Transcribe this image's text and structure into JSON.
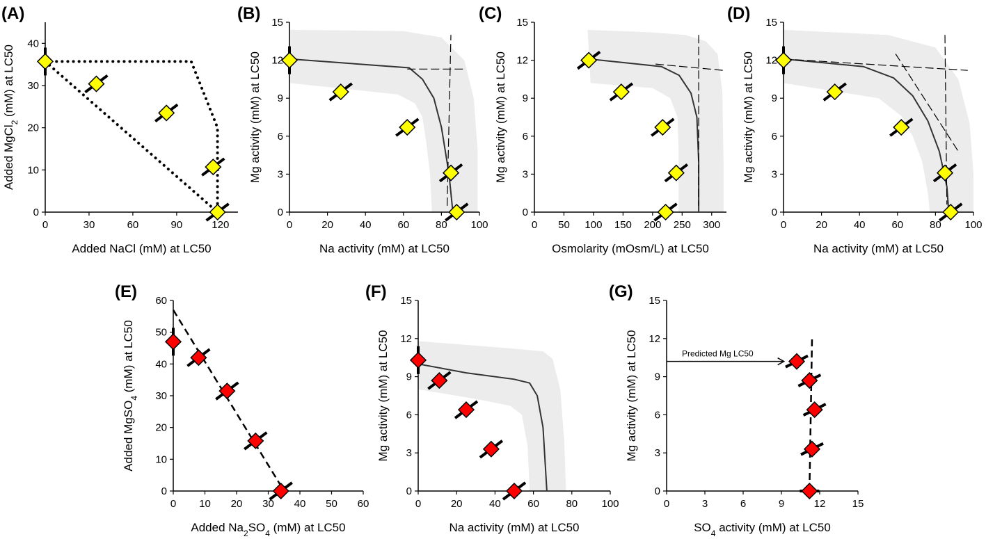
{
  "chart_data": [
    {
      "type": "scatter",
      "panel_label": "(A)",
      "xlabel": "Added NaCl (mM) at LC50",
      "ylabel_parts": [
        "Added MgCl",
        "2",
        " (mM) at LC50"
      ],
      "xlim": [
        0,
        132
      ],
      "ylim": [
        0,
        45
      ],
      "xticks": [
        0,
        30,
        60,
        90,
        120
      ],
      "yticks": [
        0,
        10,
        20,
        30,
        40
      ],
      "points": [
        [
          0,
          35.7
        ],
        [
          35,
          30.4
        ],
        [
          83,
          23.5
        ],
        [
          115,
          10.7
        ],
        [
          118,
          0
        ]
      ],
      "point_color": "#ffff00",
      "dotted_lines": [
        [
          [
            0,
            35.7
          ],
          [
            118,
            0
          ]
        ],
        [
          [
            0,
            35.7
          ],
          [
            100,
            35.7
          ],
          [
            118,
            20
          ],
          [
            118,
            0
          ]
        ]
      ],
      "dash_lines": [],
      "fit_lines": [],
      "band": null
    },
    {
      "type": "scatter",
      "panel_label": "(B)",
      "xlabel": "Na activity (mM) at LC50",
      "ylabel": "Mg activity (mM) at LC50",
      "xlim": [
        0,
        100
      ],
      "ylim": [
        0,
        15
      ],
      "xticks": [
        0,
        20,
        40,
        60,
        80,
        100
      ],
      "yticks": [
        0,
        3,
        6,
        9,
        12,
        15
      ],
      "points": [
        [
          0,
          12
        ],
        [
          27,
          9.5
        ],
        [
          62,
          6.7
        ],
        [
          85,
          3.1
        ],
        [
          88,
          0
        ]
      ],
      "point_color": "#ffff00",
      "fit_lines": [
        [
          [
            0,
            12.1
          ],
          [
            63,
            11.4
          ],
          [
            70,
            10.5
          ],
          [
            76,
            9.0
          ],
          [
            80,
            6.7
          ],
          [
            84,
            3.0
          ],
          [
            86,
            0
          ]
        ]
      ],
      "band": {
        "upper": [
          [
            0,
            14.4
          ],
          [
            60,
            14.3
          ],
          [
            80,
            13.8
          ],
          [
            92,
            12.0
          ],
          [
            97,
            9.0
          ],
          [
            99,
            5.0
          ],
          [
            99,
            0
          ]
        ],
        "lower": [
          [
            0,
            10.2
          ],
          [
            57,
            9.3
          ],
          [
            66,
            8.6
          ],
          [
            70,
            7.5
          ],
          [
            72,
            5.5
          ],
          [
            74,
            3.0
          ],
          [
            75,
            0
          ]
        ]
      },
      "dash_lines": [
        [
          [
            62,
            11.3
          ],
          [
            93,
            11.3
          ]
        ],
        [
          [
            83,
            0.5
          ],
          [
            85,
            14.0
          ]
        ]
      ]
    },
    {
      "type": "scatter",
      "panel_label": "(C)",
      "xlabel": "Osmolarity (mOsm/L) at LC50",
      "ylabel": "Mg activity (mM) at LC50",
      "xlim": [
        0,
        325
      ],
      "ylim": [
        0,
        15
      ],
      "xticks": [
        0,
        50,
        100,
        150,
        200,
        250,
        300
      ],
      "yticks": [
        0,
        3,
        6,
        9,
        12,
        15
      ],
      "points": [
        [
          92,
          12
        ],
        [
          147,
          9.5
        ],
        [
          217,
          6.7
        ],
        [
          240,
          3.1
        ],
        [
          222,
          0
        ]
      ],
      "point_color": "#ffff00",
      "fit_lines": [
        [
          [
            92,
            12.1
          ],
          [
            215,
            11.5
          ],
          [
            245,
            10.8
          ],
          [
            265,
            9.4
          ],
          [
            275,
            7.5
          ],
          [
            278,
            4
          ],
          [
            278,
            0
          ]
        ]
      ],
      "band": {
        "upper": [
          [
            90,
            14.4
          ],
          [
            200,
            14.2
          ],
          [
            255,
            14.0
          ],
          [
            290,
            13.5
          ],
          [
            310,
            12.5
          ],
          [
            318,
            9.5
          ],
          [
            320,
            4
          ],
          [
            320,
            0
          ]
        ],
        "lower": [
          [
            95,
            10.2
          ],
          [
            200,
            9.8
          ],
          [
            230,
            9.0
          ],
          [
            242,
            7.5
          ],
          [
            244,
            5
          ],
          [
            244,
            0
          ]
        ]
      },
      "dash_lines": [
        [
          [
            205,
            11.7
          ],
          [
            320,
            11.2
          ]
        ],
        [
          [
            278,
            14.0
          ],
          [
            278,
            0.5
          ]
        ]
      ]
    },
    {
      "type": "scatter",
      "panel_label": "(D)",
      "xlabel": "Na activity (mM) at LC50",
      "ylabel": "Mg activity (mM) at LC50",
      "xlim": [
        0,
        100
      ],
      "ylim": [
        0,
        15
      ],
      "xticks": [
        0,
        20,
        40,
        60,
        80,
        100
      ],
      "yticks": [
        0,
        3,
        6,
        9,
        12,
        15
      ],
      "points": [
        [
          0,
          12
        ],
        [
          27,
          9.5
        ],
        [
          62,
          6.7
        ],
        [
          85,
          3.1
        ],
        [
          88,
          0
        ]
      ],
      "point_color": "#ffff00",
      "fit_lines": [
        [
          [
            0,
            12.1
          ],
          [
            42,
            11.5
          ],
          [
            58,
            10.6
          ],
          [
            68,
            9.2
          ],
          [
            76,
            7.2
          ],
          [
            82,
            4.8
          ],
          [
            86,
            2.0
          ],
          [
            87,
            0
          ]
        ]
      ],
      "band": {
        "upper": [
          [
            0,
            14.4
          ],
          [
            55,
            14.0
          ],
          [
            80,
            13.0
          ],
          [
            92,
            10.5
          ],
          [
            98,
            7.0
          ],
          [
            100,
            3.0
          ],
          [
            100,
            0
          ]
        ],
        "lower": [
          [
            0,
            10.2
          ],
          [
            50,
            9.0
          ],
          [
            62,
            7.6
          ],
          [
            68,
            6.0
          ],
          [
            73,
            4.0
          ],
          [
            76,
            1.5
          ],
          [
            77,
            0
          ]
        ]
      },
      "dash_lines": [
        [
          [
            0,
            12.1
          ],
          [
            97,
            11.2
          ]
        ],
        [
          [
            59,
            12.5
          ],
          [
            92,
            4.8
          ]
        ],
        [
          [
            85,
            14.0
          ],
          [
            86,
            0.6
          ]
        ]
      ]
    },
    {
      "type": "scatter",
      "panel_label": "(E)",
      "xlabel_parts": [
        "Added Na",
        "2",
        "SO",
        "4",
        " (mM) at LC50"
      ],
      "ylabel_parts": [
        "Added MgSO",
        "4",
        " (mM) at LC50"
      ],
      "xlim": [
        0,
        60
      ],
      "ylim": [
        0,
        60
      ],
      "xticks": [
        0,
        10,
        20,
        30,
        40,
        50,
        60
      ],
      "yticks": [
        0,
        10,
        20,
        30,
        40,
        50,
        60
      ],
      "points": [
        [
          0,
          47
        ],
        [
          8,
          42
        ],
        [
          17,
          31.5
        ],
        [
          26,
          15.8
        ],
        [
          34,
          0
        ]
      ],
      "point_color": "#ff0000",
      "fit_lines": [],
      "band": null,
      "dash_lines": [
        [
          [
            0,
            57
          ],
          [
            35,
            0
          ]
        ]
      ]
    },
    {
      "type": "scatter",
      "panel_label": "(F)",
      "xlabel": "Na activity (mM) at LC50",
      "ylabel": "Mg activity (mM) at LC50",
      "xlim": [
        0,
        100
      ],
      "ylim": [
        0,
        15
      ],
      "xticks": [
        0,
        20,
        40,
        60,
        80,
        100
      ],
      "yticks": [
        0,
        3,
        6,
        9,
        12,
        15
      ],
      "points": [
        [
          0,
          10.3
        ],
        [
          11,
          8.7
        ],
        [
          25,
          6.4
        ],
        [
          38,
          3.3
        ],
        [
          50,
          0
        ]
      ],
      "point_color": "#ff0000",
      "fit_lines": [
        [
          [
            0,
            10.0
          ],
          [
            25,
            9.3
          ],
          [
            50,
            8.8
          ],
          [
            58,
            8.5
          ],
          [
            62,
            7.5
          ],
          [
            65,
            5
          ],
          [
            67,
            0
          ]
        ]
      ],
      "band": {
        "upper": [
          [
            0,
            11.8
          ],
          [
            50,
            11.2
          ],
          [
            65,
            11.0
          ],
          [
            70,
            10.4
          ],
          [
            74,
            8.0
          ],
          [
            76,
            4.0
          ],
          [
            77,
            0
          ]
        ],
        "lower": [
          [
            0,
            8.0
          ],
          [
            20,
            7.5
          ],
          [
            35,
            7.1
          ],
          [
            48,
            6.7
          ],
          [
            54,
            6.0
          ],
          [
            57,
            3.5
          ],
          [
            58,
            0
          ]
        ]
      },
      "dash_lines": []
    },
    {
      "type": "scatter",
      "panel_label": "(G)",
      "xlabel_parts": [
        "SO",
        "4",
        " activity (mM) at LC50"
      ],
      "ylabel": "Mg activity (mM) at LC50",
      "xlim": [
        0,
        15
      ],
      "ylim": [
        0,
        15
      ],
      "xticks": [
        0,
        3,
        6,
        9,
        12,
        15
      ],
      "yticks": [
        0,
        3,
        6,
        9,
        12,
        15
      ],
      "points": [
        [
          10.2,
          10.2
        ],
        [
          11.2,
          8.7
        ],
        [
          11.6,
          6.4
        ],
        [
          11.4,
          3.3
        ],
        [
          11.2,
          0
        ]
      ],
      "point_color": "#ff0000",
      "fit_lines": [],
      "band": null,
      "dash_lines": [
        [
          [
            11.2,
            0
          ],
          [
            11.4,
            12.0
          ]
        ]
      ],
      "annotation": {
        "text": "Predicted Mg LC50",
        "from": [
          0,
          10.2
        ],
        "to": [
          9.2,
          10.2
        ]
      }
    }
  ]
}
